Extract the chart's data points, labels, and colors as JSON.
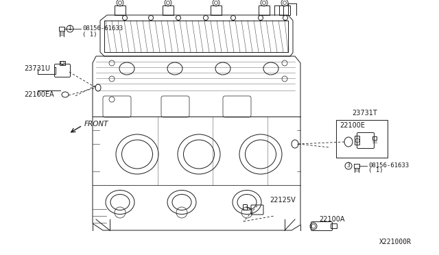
{
  "bg_color": "#ffffff",
  "labels": {
    "bolt_top": "08156-61633",
    "bolt_top_sub": "( 1)",
    "bolt_top_num": "1",
    "part_23731U": "23731U",
    "part_22100EA": "22100EA",
    "front_arrow": "FRONT",
    "part_23731T": "23731T",
    "part_22100E": "22100E",
    "bolt_right": "08156-61633",
    "bolt_right_sub": "( 1)",
    "bolt_right_num": "3",
    "part_22125V": "22125V",
    "part_22100A": "22100A",
    "watermark": "X221000R"
  },
  "fig_width": 6.4,
  "fig_height": 3.72,
  "dpi": 100
}
